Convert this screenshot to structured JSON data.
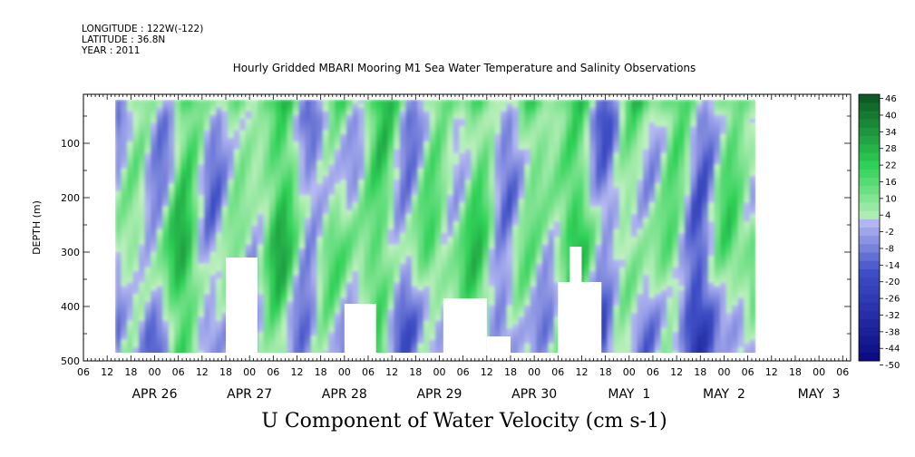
{
  "header": {
    "longitude": "LONGITUDE : 122W(-122)",
    "latitude": "LATITUDE : 36.8N",
    "year": "YEAR : 2011"
  },
  "chart_data": {
    "type": "heatmap",
    "title": "Hourly Gridded MBARI Mooring M1 Sea Water Temperature and Salinity Observations",
    "variable_label": "U Component of Water Velocity (cm s-1)",
    "ylabel": "DEPTH (m)",
    "y_axis": {
      "range": [
        10,
        500
      ],
      "inverted": true,
      "ticks": [
        100,
        200,
        300,
        400,
        500
      ]
    },
    "x_axis": {
      "start": "2011-04-26T06:00",
      "end": "2011-05-03T08:00",
      "hour_ticks": [
        "06",
        "12",
        "18",
        "00",
        "06",
        "12",
        "18",
        "00",
        "06",
        "12",
        "18",
        "00",
        "06",
        "12",
        "18",
        "00",
        "06",
        "12",
        "18",
        "00",
        "06",
        "12",
        "18",
        "00",
        "06",
        "12",
        "18",
        "00",
        "06",
        "12",
        "18",
        "00",
        "06"
      ],
      "date_labels": [
        "APR 26",
        "APR 27",
        "APR 28",
        "APR 29",
        "APR 30",
        "MAY  1",
        "MAY  2",
        "MAY  3"
      ]
    },
    "data_extent_hours": [
      8,
      170
    ],
    "data_depth_range": [
      20,
      485
    ],
    "colorbar": {
      "labels": [
        "46",
        "40",
        "34",
        "28",
        "22",
        "16",
        "10",
        "4",
        "-2",
        "-8",
        "-14",
        "-20",
        "-26",
        "-32",
        "-38",
        "-44",
        "-50"
      ],
      "range": [
        -50,
        46
      ],
      "colors": {
        "neg_max": "#0a0a80",
        "neg_mid": "#3f4fc6",
        "neg_min": "#b6baf2",
        "pos_min": "#bff0bf",
        "pos_mid": "#2fd257",
        "pos_max": "#0c5422"
      }
    },
    "gaps": [
      {
        "start_hr": 36,
        "end_hr": 44,
        "depth_top": 310,
        "depth_bottom": 485
      },
      {
        "start_hr": 66,
        "end_hr": 74,
        "depth_top": 395,
        "depth_bottom": 485
      },
      {
        "start_hr": 91,
        "end_hr": 102,
        "depth_top": 385,
        "depth_bottom": 485
      },
      {
        "start_hr": 102,
        "end_hr": 108,
        "depth_top": 455,
        "depth_bottom": 485
      },
      {
        "start_hr": 120,
        "end_hr": 131,
        "depth_top": 355,
        "depth_bottom": 485
      },
      {
        "start_hr": 123,
        "end_hr": 126,
        "depth_top": 290,
        "depth_bottom": 485
      }
    ]
  }
}
